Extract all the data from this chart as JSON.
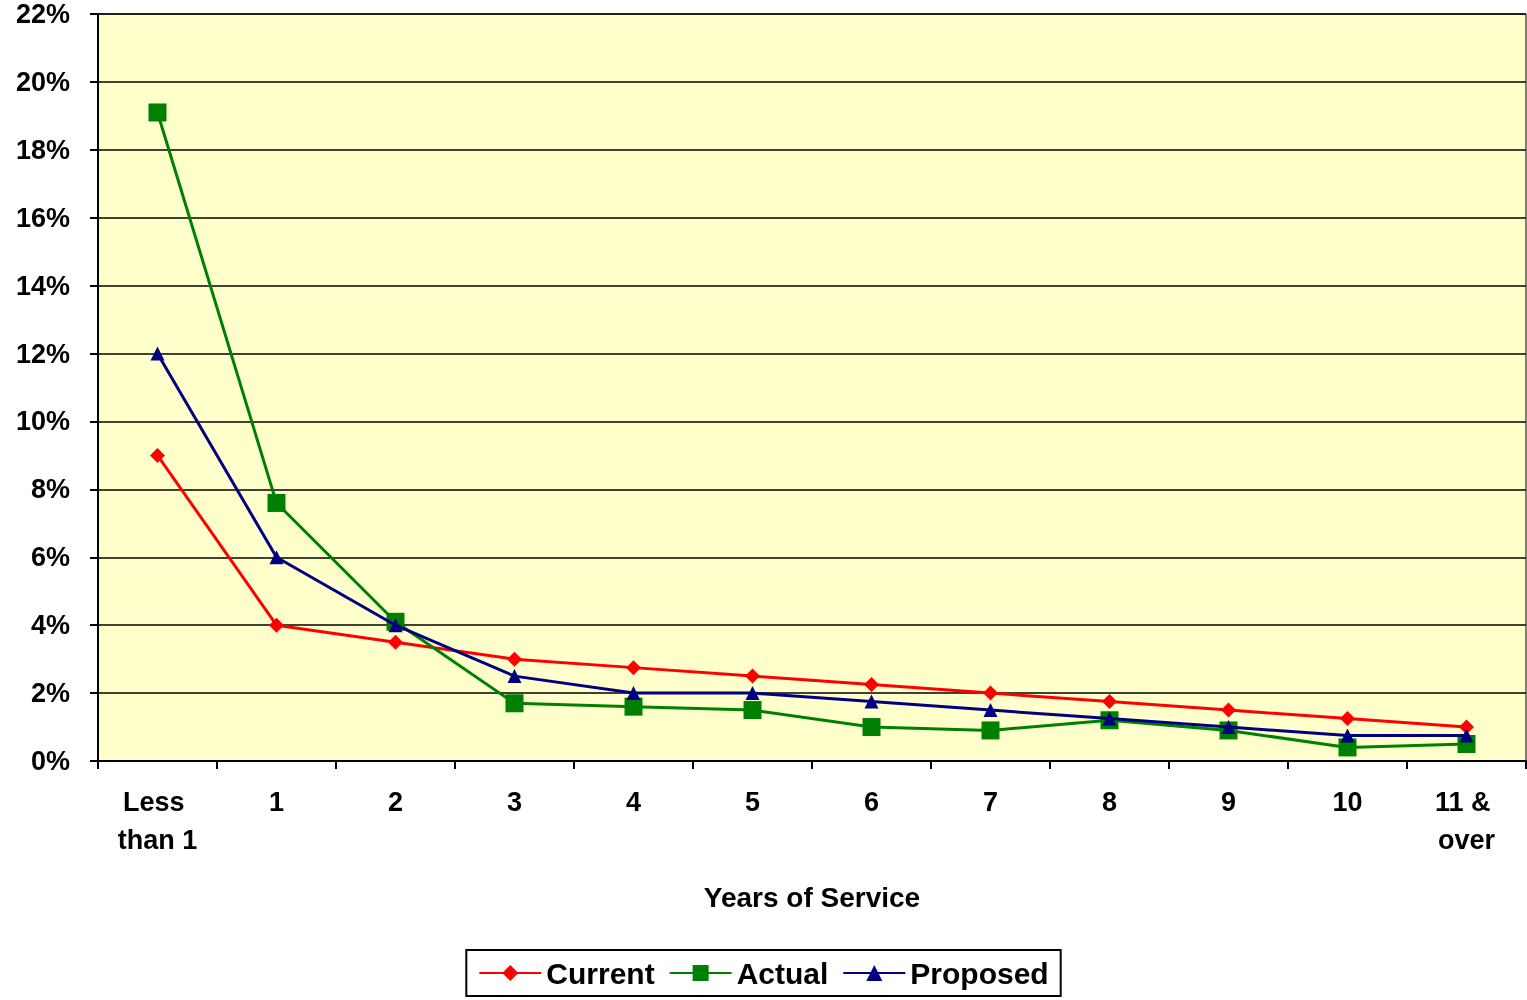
{
  "chart_data": {
    "type": "line",
    "xlabel": "Years of Service",
    "categories": [
      "Less than 1",
      "1",
      "2",
      "3",
      "4",
      "5",
      "6",
      "7",
      "8",
      "9",
      "10",
      "11 & over"
    ],
    "series": [
      {
        "name": "Current",
        "color": "#ff0000",
        "marker": "diamond",
        "values": [
          9,
          4,
          3.5,
          3.0,
          2.75,
          2.5,
          2.25,
          2.0,
          1.75,
          1.5,
          1.25,
          1.0
        ]
      },
      {
        "name": "Actual",
        "color": "#008000",
        "marker": "square",
        "values": [
          19.1,
          7.6,
          4.1,
          1.7,
          1.6,
          1.5,
          1.0,
          0.9,
          1.2,
          0.9,
          0.4,
          0.5
        ]
      },
      {
        "name": "Proposed",
        "color": "#000080",
        "marker": "triangle",
        "values": [
          12,
          6,
          4,
          2.5,
          2.0,
          2.0,
          1.75,
          1.5,
          1.25,
          1.0,
          0.75,
          0.75
        ]
      }
    ],
    "ylim": [
      0,
      22
    ],
    "yticks": [
      {
        "value": 0,
        "label": "0%"
      },
      {
        "value": 2,
        "label": "2%"
      },
      {
        "value": 4,
        "label": "4%"
      },
      {
        "value": 6,
        "label": "6%"
      },
      {
        "value": 8,
        "label": "8%"
      },
      {
        "value": 10,
        "label": "10%"
      },
      {
        "value": 12,
        "label": "12%"
      },
      {
        "value": 14,
        "label": "14%"
      },
      {
        "value": 16,
        "label": "16%"
      },
      {
        "value": 18,
        "label": "18%"
      },
      {
        "value": 20,
        "label": "20%"
      },
      {
        "value": 22,
        "label": "22%"
      }
    ],
    "grid": "y",
    "legend": "bottom",
    "line_style": "solid"
  }
}
